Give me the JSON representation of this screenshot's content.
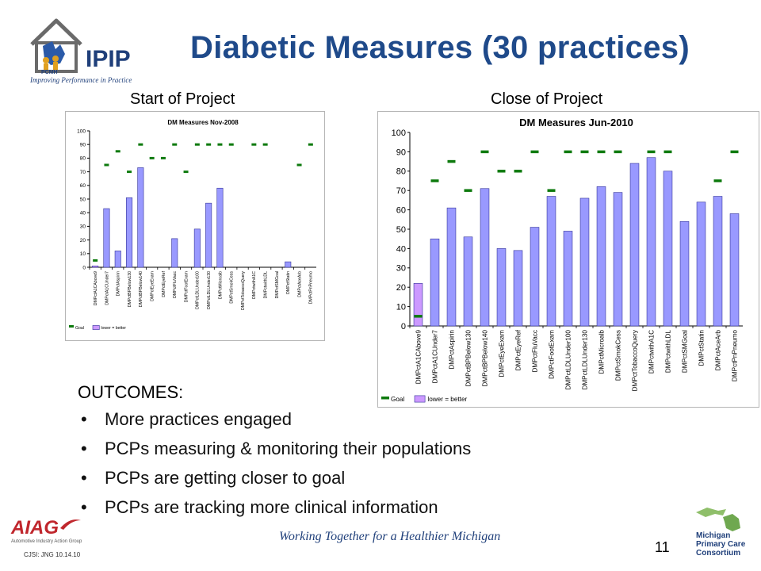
{
  "slide": {
    "title": "Diabetic Measures (30 practices)",
    "caption_left": "Start of Project",
    "caption_right": "Close of Project",
    "outcomes_heading": "OUTCOMES:",
    "bullets": [
      "More practices engaged",
      "PCPs measuring & monitoring their populations",
      "PCPs are getting closer to goal",
      "PCPs are tracking more clinical information"
    ],
    "motto": "Working Together for a Healthier Michigan",
    "page_number": "11",
    "footer_code": "CJSI: JNG 10.14.10"
  },
  "logos": {
    "ipip": {
      "text": "IPIP",
      "badge": "PCMH",
      "tagline": "Improving Performance in Practice"
    },
    "aiag": {
      "text": "AIAG",
      "sub": "Automotive Industry Action Group"
    },
    "mpcc": {
      "lines": [
        "Michigan",
        "Primary Care",
        "Consortium"
      ]
    }
  },
  "colors": {
    "title": "#1f4a8a",
    "bar_fill": "#9999ff",
    "bar_highlight": "#cc99ff",
    "bar_stroke": "#333399",
    "goal": "#0e7a0e"
  },
  "chart_data": [
    {
      "type": "bar",
      "title": "DM Measures Nov-2008",
      "categories": [
        "DMPctA1CAbove9",
        "DMPctA1CUnder7",
        "DMPctAspirin",
        "DMPctBPBelow130",
        "DMPctBPBelow140",
        "DMPctEyeExam",
        "DMPctEyeRef",
        "DMPctFluVacc",
        "DMPctFootExam",
        "DMPctLDLUnder100",
        "DMPctLDLUnder130",
        "DMPctMicroalb",
        "DMPctSmokCess",
        "DMPctTobaccoQuery",
        "DMPctwithA1C",
        "DMPctwithLDL",
        "DMPctSMGoal",
        "DMPctStatin",
        "DMPctAceArb",
        "DMPctPnPneumo"
      ],
      "series": [
        {
          "name": "lower = better",
          "values": [
            1,
            43,
            12,
            51,
            73,
            0,
            0,
            21,
            0,
            28,
            47,
            58,
            0,
            0,
            0,
            0,
            0,
            4,
            0,
            0
          ]
        },
        {
          "name": "Goal",
          "values": [
            5,
            75,
            85,
            70,
            90,
            80,
            80,
            90,
            70,
            90,
            90,
            90,
            90,
            null,
            90,
            90,
            null,
            null,
            75,
            90
          ]
        }
      ],
      "highlight_index": 0,
      "ylim": [
        0,
        100
      ],
      "yticks": [
        0,
        10,
        20,
        30,
        40,
        50,
        60,
        70,
        80,
        90,
        100
      ],
      "legend": "bottom",
      "grid": false
    },
    {
      "type": "bar",
      "title": "DM Measures Jun-2010",
      "categories": [
        "DMPctA1CAbove9",
        "DMPctA1CUnder7",
        "DMPctAspirin",
        "DMPctBPBelow130",
        "DMPctBPBelow140",
        "DMPctEyeExam",
        "DMPctEyeRef",
        "DMPctFluVacc",
        "DMPctFootExam",
        "DMPctLDLUnder100",
        "DMPctLDLUnder130",
        "DMPctMicroalb",
        "DMPctSmokCess",
        "DMPctTobaccoQuery",
        "DMPctwithA1C",
        "DMPctwithLDL",
        "DMPctSMGoal",
        "DMPctStatin",
        "DMPctAceArb",
        "DMPctPnPneumo"
      ],
      "series": [
        {
          "name": "lower = better",
          "values": [
            22,
            45,
            61,
            46,
            71,
            40,
            39,
            51,
            67,
            49,
            66,
            72,
            69,
            84,
            87,
            80,
            54,
            64,
            67,
            58
          ]
        },
        {
          "name": "Goal",
          "values": [
            5,
            75,
            85,
            70,
            90,
            80,
            80,
            90,
            70,
            90,
            90,
            90,
            90,
            null,
            90,
            90,
            null,
            null,
            75,
            90
          ]
        }
      ],
      "highlight_index": 0,
      "ylim": [
        0,
        100
      ],
      "yticks": [
        0,
        10,
        20,
        30,
        40,
        50,
        60,
        70,
        80,
        90,
        100
      ],
      "legend": "bottom",
      "grid": false
    }
  ]
}
